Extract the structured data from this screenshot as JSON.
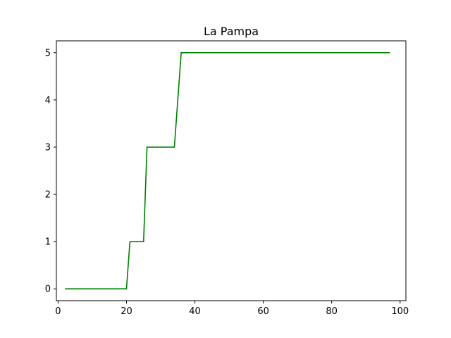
{
  "chart_data": {
    "type": "line",
    "title": "La Pampa",
    "xlabel": "",
    "ylabel": "",
    "xlim": [
      -0.5,
      101.7
    ],
    "ylim": [
      -0.25,
      5.25
    ],
    "xticks": [
      0,
      20,
      40,
      60,
      80,
      100
    ],
    "yticks": [
      0,
      1,
      2,
      3,
      4,
      5
    ],
    "grid": false,
    "legend": "none",
    "series": [
      {
        "color": "#008000",
        "x": [
          2,
          20,
          21,
          25,
          26,
          34,
          36,
          97
        ],
        "y": [
          0,
          0,
          1,
          1,
          3,
          3,
          5,
          5
        ]
      }
    ]
  }
}
